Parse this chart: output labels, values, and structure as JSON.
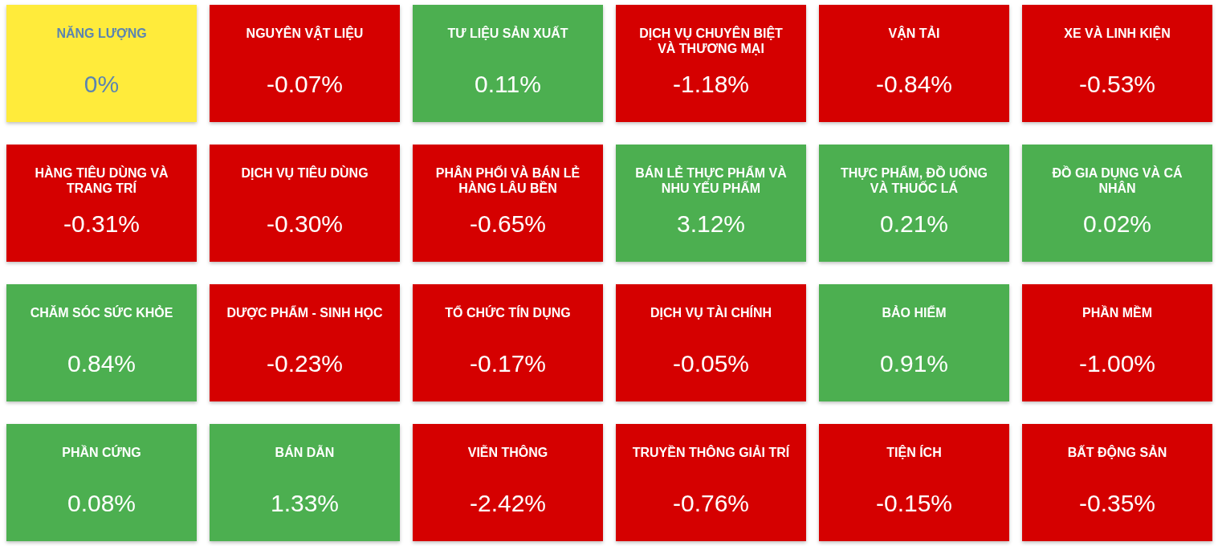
{
  "chart_data": {
    "type": "other",
    "categories": [
      "NĂNG LƯỢNG",
      "NGUYÊN VẬT LIỆU",
      "TƯ LIỆU SẢN XUẤT",
      "DỊCH VỤ CHUYÊN BIỆT VÀ THƯƠNG MẠI",
      "VẬN TẢI",
      "XE VÀ LINH KIỆN",
      "HÀNG TIÊU DÙNG VÀ TRANG TRÍ",
      "DỊCH VỤ TIÊU DÙNG",
      "PHÂN PHỐI VÀ BÁN LẺ HÀNG LÂU BỀN",
      "BÁN LẺ THỰC PHẨM VÀ NHU YẾU PHẨM",
      "THỰC PHẨM, ĐỒ UỐNG VÀ THUỐC LÁ",
      "ĐỒ GIA DỤNG VÀ CÁ NHÂN",
      "CHĂM SÓC SỨC KHỎE",
      "DƯỢC PHẨM - SINH HỌC",
      "TỔ CHỨC TÍN DỤNG",
      "DỊCH VỤ TÀI CHÍNH",
      "BẢO HIỂM",
      "PHẦN MỀM",
      "PHẦN CỨNG",
      "BÁN DẪN",
      "VIỄN THÔNG",
      "TRUYỀN THÔNG GIẢI TRÍ",
      "TIỆN ÍCH",
      "BẤT ĐỘNG SẢN"
    ],
    "values": [
      0,
      -0.07,
      0.11,
      -1.18,
      -0.84,
      -0.53,
      -0.31,
      -0.3,
      -0.65,
      3.12,
      0.21,
      0.02,
      0.84,
      -0.23,
      -0.17,
      -0.05,
      0.91,
      -1.0,
      0.08,
      1.33,
      -2.42,
      -0.76,
      -0.15,
      -0.35
    ],
    "value_labels": [
      "0%",
      "-0.07%",
      "0.11%",
      "-1.18%",
      "-0.84%",
      "-0.53%",
      "-0.31%",
      "-0.30%",
      "-0.65%",
      "3.12%",
      "0.21%",
      "0.02%",
      "0.84%",
      "-0.23%",
      "-0.17%",
      "-0.05%",
      "0.91%",
      "-1.00%",
      "0.08%",
      "1.33%",
      "-2.42%",
      "-0.76%",
      "-0.15%",
      "-0.35%"
    ],
    "colors": [
      "#ffeb3b",
      "#d50000",
      "#4caf50",
      "#d50000",
      "#d50000",
      "#d50000",
      "#d50000",
      "#d50000",
      "#d50000",
      "#4caf50",
      "#4caf50",
      "#4caf50",
      "#4caf50",
      "#d50000",
      "#d50000",
      "#d50000",
      "#4caf50",
      "#d50000",
      "#4caf50",
      "#4caf50",
      "#d50000",
      "#d50000",
      "#d50000",
      "#d50000"
    ]
  }
}
